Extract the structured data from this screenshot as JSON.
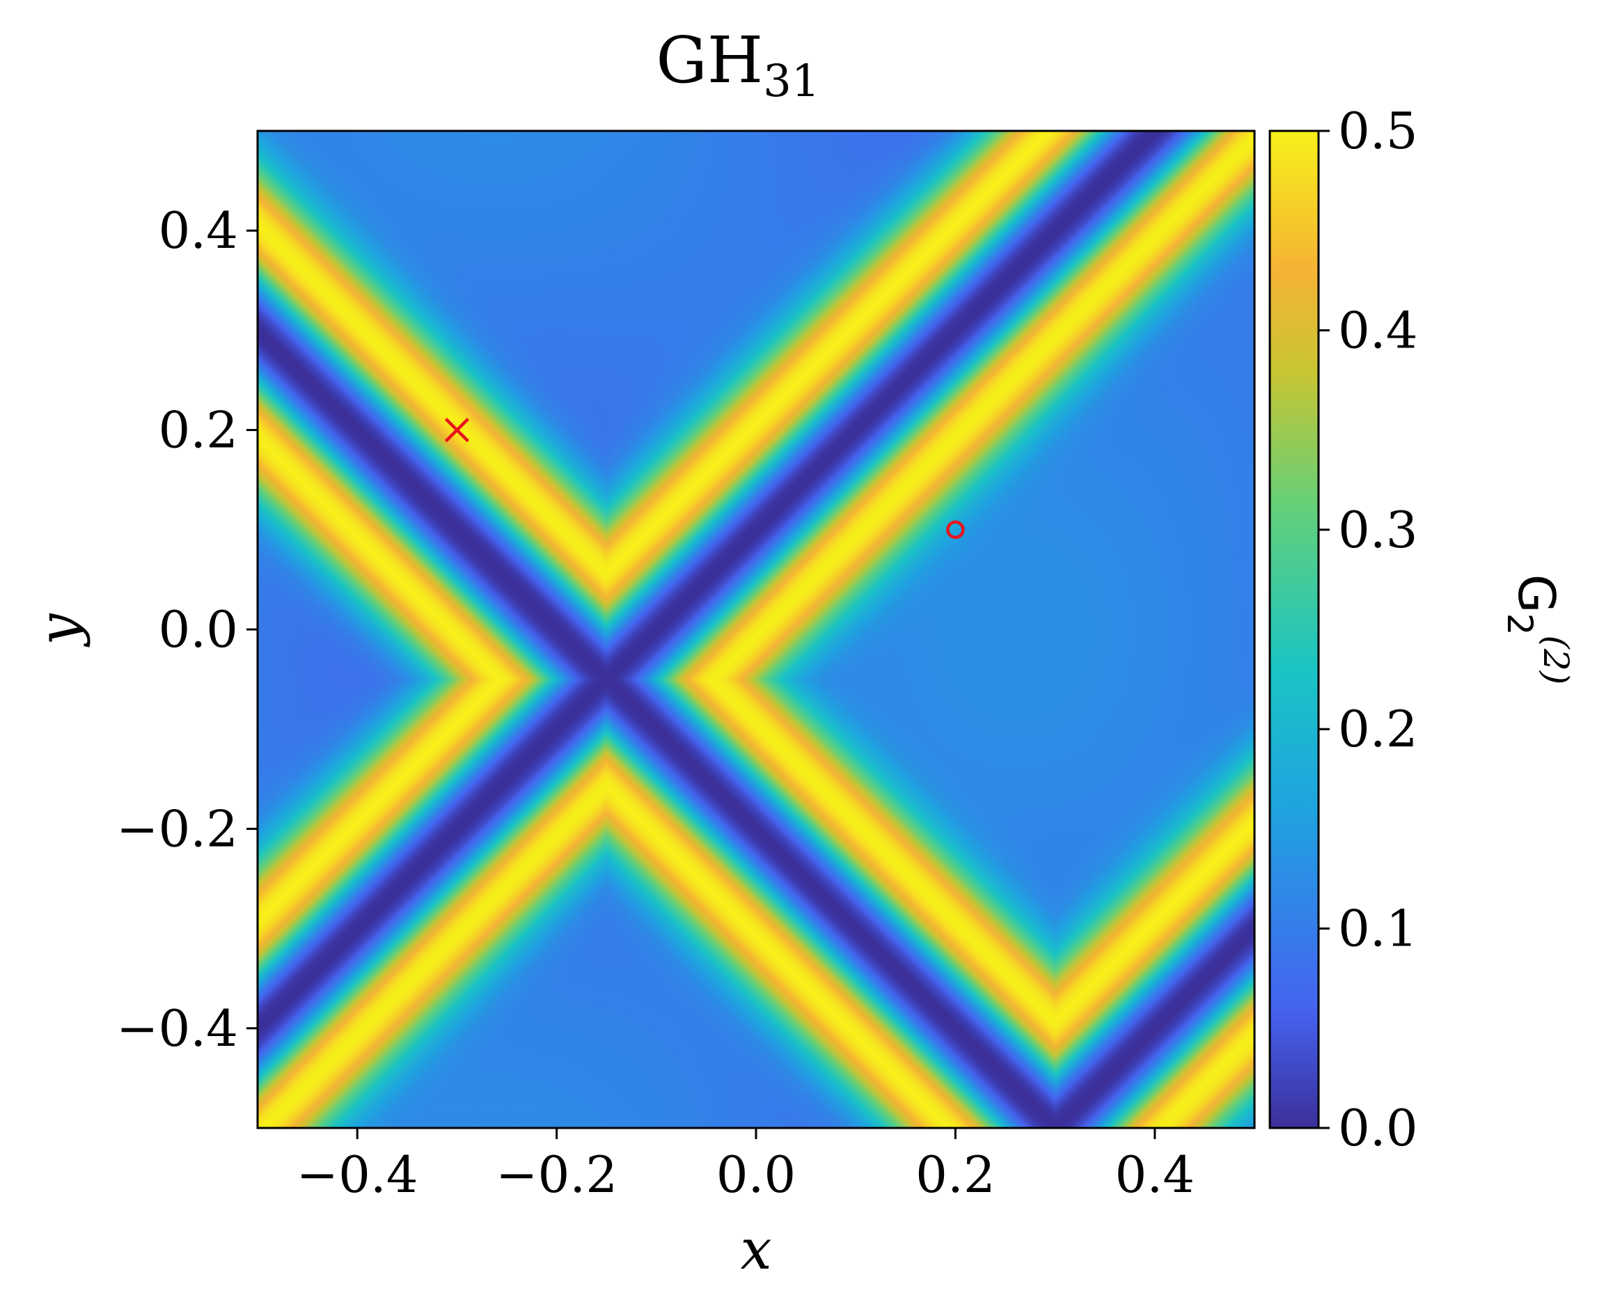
{
  "chart_data": {
    "type": "heatmap",
    "title": "GH",
    "title_subscript": "31",
    "xlabel": "x",
    "ylabel": "y",
    "xlim": [
      -0.5,
      0.5
    ],
    "ylim": [
      -0.5,
      0.5
    ],
    "x_ticks": [
      -0.4,
      -0.2,
      0.0,
      0.2,
      0.4
    ],
    "x_tick_labels": [
      "−0.4",
      "−0.2",
      "0.0",
      "0.2",
      "0.4"
    ],
    "y_ticks": [
      -0.4,
      -0.2,
      0.0,
      0.2,
      0.4
    ],
    "y_tick_labels": [
      "−0.4",
      "−0.2",
      "0.0",
      "0.2",
      "0.4"
    ],
    "grid": false,
    "colorbar": {
      "label": "G",
      "label_subscript": "2",
      "label_superscript": "(2)",
      "range": [
        0.0,
        0.5
      ],
      "ticks": [
        0.0,
        0.1,
        0.2,
        0.3,
        0.4,
        0.5
      ],
      "tick_labels": [
        "0.0",
        "0.1",
        "0.2",
        "0.3",
        "0.4",
        "0.5"
      ],
      "colormap": "turbo-like (dark indigo → blue → cyan → green → yellow)",
      "stops": [
        "#3b2f9a",
        "#4563f0",
        "#1fa3e0",
        "#1bc4c4",
        "#62d07a",
        "#c9c532",
        "#f5b335",
        "#f7f01a"
      ]
    },
    "markers": [
      {
        "type": "x",
        "x": -0.3,
        "y": 0.2,
        "color": "#e8141e"
      },
      {
        "type": "circle",
        "x": 0.2,
        "y": 0.1,
        "color": "#e8141e"
      }
    ],
    "field_features": {
      "dark_valleys": [
        {
          "type": "line",
          "slope": 1,
          "intercept": 0.1
        },
        {
          "type": "line",
          "slope": -1,
          "intercept": -0.2
        },
        {
          "type": "line",
          "slope": 1,
          "intercept": -0.8
        }
      ],
      "low_region_minimum": 0.1,
      "ridge_maximum": 0.5
    }
  }
}
